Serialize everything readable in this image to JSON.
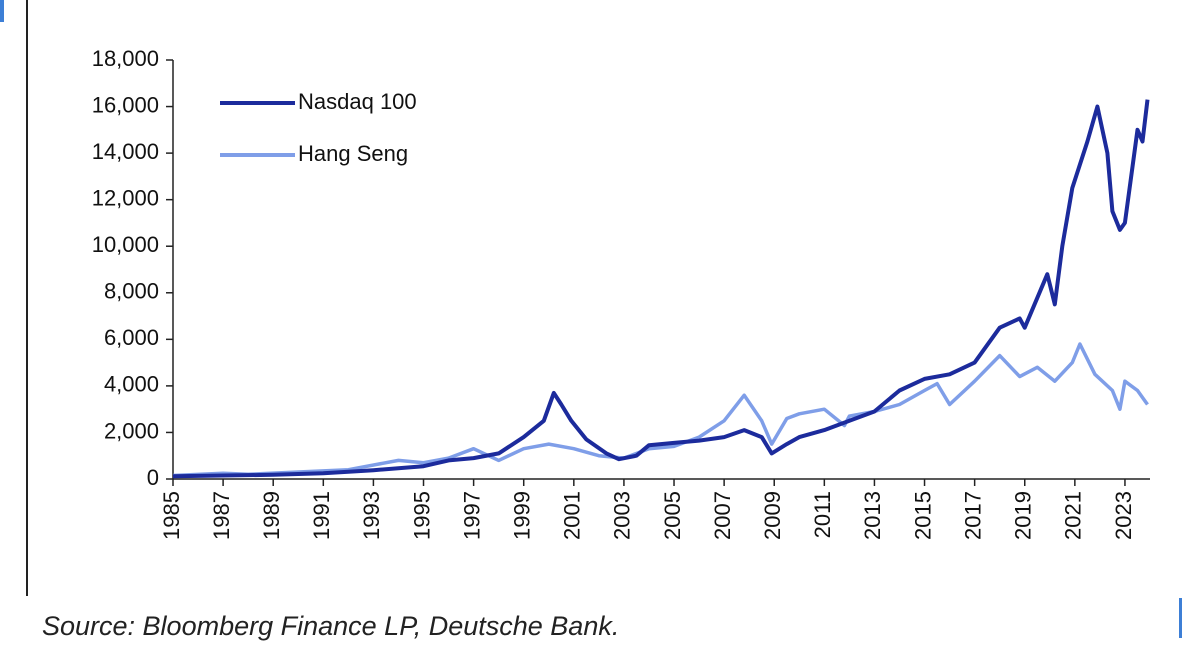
{
  "chart_data": {
    "type": "line",
    "source": "Source: Bloomberg Finance LP, Deutsche Bank.",
    "xlim": [
      1985,
      2024
    ],
    "xticks": [
      1985,
      1987,
      1989,
      1991,
      1993,
      1995,
      1997,
      1999,
      2001,
      2003,
      2005,
      2007,
      2009,
      2011,
      2013,
      2015,
      2017,
      2019,
      2021,
      2023
    ],
    "ylim": [
      0,
      18000
    ],
    "yticks": [
      0,
      {
        "value": 2000,
        "label": "2,000"
      },
      {
        "value": 4000,
        "label": "4,000"
      },
      {
        "value": 6000,
        "label": "6,000"
      },
      {
        "value": 8000,
        "label": "8,000"
      },
      {
        "value": 10000,
        "label": "10,000"
      },
      {
        "value": 12000,
        "label": "12,000"
      },
      {
        "value": 14000,
        "label": "14,000"
      },
      {
        "value": 16000,
        "label": "16,000"
      },
      {
        "value": 18000,
        "label": "18,000"
      }
    ],
    "legend": "upper left",
    "series": [
      {
        "name": "Nasdaq 100",
        "color": "#1c2b9c",
        "x": [
          1985,
          1987,
          1989,
          1991,
          1993,
          1995,
          1996,
          1997,
          1998,
          1999,
          1999.8,
          2000.2,
          2000.5,
          2000.9,
          2001.5,
          2002.3,
          2002.8,
          2003.5,
          2004,
          2005,
          2006,
          2007,
          2007.8,
          2008.5,
          2008.9,
          2009.5,
          2010,
          2011,
          2012,
          2013,
          2014,
          2015,
          2016,
          2017,
          2018,
          2018.8,
          2019,
          2019.9,
          2020.2,
          2020.5,
          2020.9,
          2021.5,
          2021.9,
          2022.3,
          2022.5,
          2022.8,
          2023,
          2023.5,
          2023.7,
          2023.9
        ],
        "values": [
          120,
          150,
          180,
          250,
          380,
          550,
          800,
          900,
          1100,
          1800,
          2500,
          3700,
          3200,
          2500,
          1700,
          1100,
          850,
          1000,
          1450,
          1550,
          1650,
          1800,
          2100,
          1800,
          1100,
          1500,
          1800,
          2100,
          2500,
          2900,
          3800,
          4300,
          4500,
          5000,
          6500,
          6900,
          6500,
          8800,
          7500,
          10000,
          12500,
          14500,
          16000,
          14000,
          11500,
          10700,
          11000,
          15000,
          14500,
          16300
        ]
      },
      {
        "name": "Hang Seng",
        "color": "#7f9ee8",
        "x": [
          1985,
          1987,
          1988,
          1990,
          1992,
          1994,
          1995,
          1996,
          1997,
          1998,
          1999,
          2000,
          2001,
          2002,
          2003,
          2004,
          2005,
          2006,
          2007,
          2007.8,
          2008.5,
          2008.9,
          2009.5,
          2010,
          2011,
          2011.8,
          2012,
          2013,
          2014,
          2015,
          2015.5,
          2016,
          2017,
          2018,
          2018.8,
          2019.5,
          2020.2,
          2020.9,
          2021.2,
          2021.8,
          2022.5,
          2022.8,
          2023,
          2023.5,
          2023.9
        ],
        "values": [
          150,
          250,
          200,
          300,
          400,
          800,
          700,
          900,
          1300,
          800,
          1300,
          1500,
          1300,
          1000,
          900,
          1300,
          1400,
          1800,
          2500,
          3600,
          2500,
          1500,
          2600,
          2800,
          3000,
          2300,
          2700,
          2900,
          3200,
          3800,
          4100,
          3200,
          4200,
          5300,
          4400,
          4800,
          4200,
          5000,
          5800,
          4500,
          3800,
          3000,
          4200,
          3800,
          3200
        ]
      }
    ]
  }
}
